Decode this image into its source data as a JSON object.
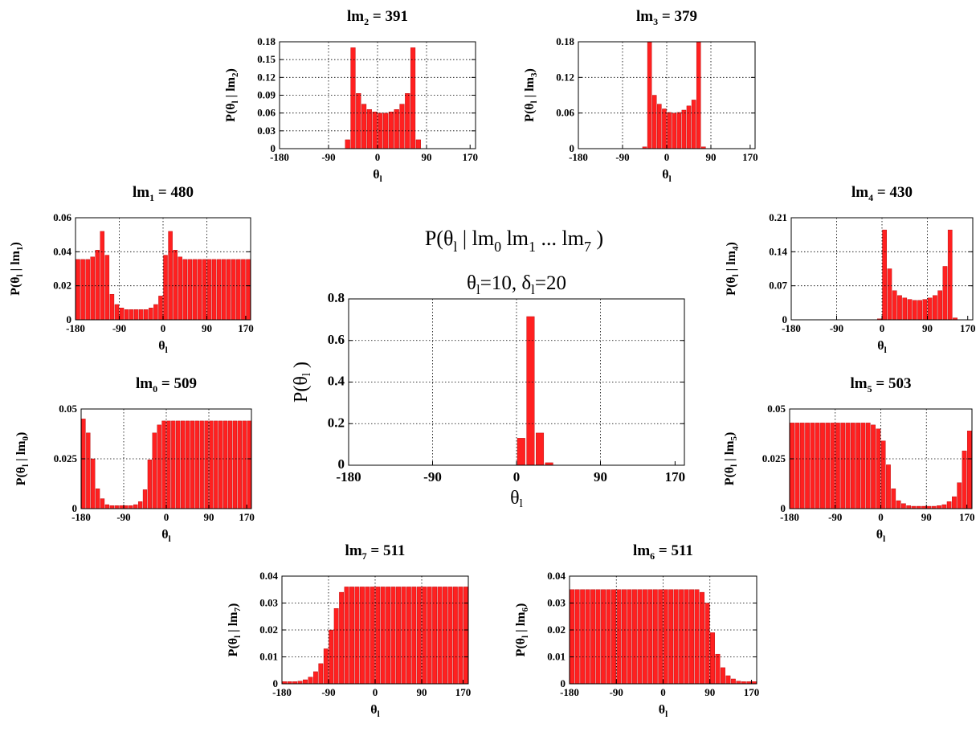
{
  "figure": {
    "main_title": {
      "p": "P(θ",
      "sub_a": "l",
      "mid": " | lm",
      "sub_b": "0",
      "mid2": " lm",
      "sub_c": "1",
      "mid3": " ... lm",
      "sub_d": "7",
      "end": " )"
    },
    "bar_color": "#ff2020",
    "bar_edge": "#b00000",
    "grid_color": "#000000"
  },
  "chart_data": [
    {
      "id": "lm2",
      "type": "bar",
      "title": {
        "base": "lm",
        "sub": "2",
        "suffix": " = 391"
      },
      "ylabel": {
        "a": "P(θ",
        "s1": "l",
        "b": " | lm",
        "s2": "2",
        "c": ")"
      },
      "xlabel": {
        "a": "θ",
        "s": "l"
      },
      "xlim": [
        -180,
        180
      ],
      "ylim": [
        0,
        0.18
      ],
      "xticks": [
        "-180",
        "-90",
        "0",
        "90",
        "170"
      ],
      "xtick_values": [
        -180,
        -90,
        0,
        90,
        170
      ],
      "yticks": [
        "0",
        "0.03",
        "0.06",
        "0.09",
        "0.12",
        "0.15",
        "0.18"
      ],
      "ytick_values": [
        0,
        0.03,
        0.06,
        0.09,
        0.12,
        0.15,
        0.18
      ],
      "bin_start": -180,
      "bin_width": 10,
      "values": [
        0,
        0,
        0,
        0,
        0,
        0,
        0,
        0,
        0,
        0,
        0,
        0,
        0.015,
        0.17,
        0.093,
        0.075,
        0.066,
        0.062,
        0.06,
        0.06,
        0.062,
        0.066,
        0.075,
        0.093,
        0.17,
        0.015,
        0,
        0,
        0,
        0,
        0,
        0,
        0,
        0,
        0,
        0
      ]
    },
    {
      "id": "lm3",
      "type": "bar",
      "title": {
        "base": "lm",
        "sub": "3",
        "suffix": " = 379"
      },
      "ylabel": {
        "a": "P(θ",
        "s1": "l",
        "b": " | lm",
        "s2": "3",
        "c": ")"
      },
      "xlabel": {
        "a": "θ",
        "s": "l"
      },
      "xlim": [
        -180,
        180
      ],
      "ylim": [
        0,
        0.18
      ],
      "xticks": [
        "-180",
        "-90",
        "0",
        "90",
        "170"
      ],
      "xtick_values": [
        -180,
        -90,
        0,
        90,
        170
      ],
      "yticks": [
        "0",
        "0.06",
        "0.12",
        "0.18"
      ],
      "ytick_values": [
        0,
        0.06,
        0.12,
        0.18
      ],
      "bin_start": -180,
      "bin_width": 10,
      "values": [
        0,
        0,
        0,
        0,
        0,
        0,
        0,
        0,
        0,
        0,
        0,
        0,
        0,
        0.003,
        0.18,
        0.09,
        0.075,
        0.067,
        0.061,
        0.06,
        0.061,
        0.065,
        0.072,
        0.082,
        0.18,
        0.003,
        0,
        0,
        0,
        0,
        0,
        0,
        0,
        0,
        0,
        0
      ]
    },
    {
      "id": "lm1",
      "type": "bar",
      "title": {
        "base": "lm",
        "sub": "1",
        "suffix": " = 480"
      },
      "ylabel": {
        "a": "P(θ",
        "s1": "l",
        "b": " | lm",
        "s2": "1",
        "c": ")"
      },
      "xlabel": {
        "a": "θ",
        "s": "l"
      },
      "xlim": [
        -180,
        180
      ],
      "ylim": [
        0,
        0.06
      ],
      "xticks": [
        "-180",
        "-90",
        "0",
        "90",
        "170"
      ],
      "xtick_values": [
        -180,
        -90,
        0,
        90,
        170
      ],
      "yticks": [
        "0",
        "0.02",
        "0.04",
        "0.06"
      ],
      "ytick_values": [
        0,
        0.02,
        0.04,
        0.06
      ],
      "bin_start": -180,
      "bin_width": 10,
      "values": [
        0.0355,
        0.0355,
        0.0355,
        0.037,
        0.041,
        0.052,
        0.038,
        0.015,
        0.009,
        0.007,
        0.006,
        0.006,
        0.006,
        0.006,
        0.006,
        0.007,
        0.009,
        0.014,
        0.038,
        0.052,
        0.041,
        0.037,
        0.0355,
        0.0355,
        0.0355,
        0.0355,
        0.0355,
        0.0355,
        0.0355,
        0.0355,
        0.0355,
        0.0355,
        0.0355,
        0.0355,
        0.0355,
        0.0355
      ]
    },
    {
      "id": "lm4",
      "type": "bar",
      "title": {
        "base": "lm",
        "sub": "4",
        "suffix": " = 430"
      },
      "ylabel": {
        "a": "P(θ",
        "s1": "l",
        "b": " | lm",
        "s2": "4",
        "c": ")"
      },
      "xlabel": {
        "a": "θ",
        "s": "l"
      },
      "xlim": [
        -180,
        180
      ],
      "ylim": [
        0,
        0.21
      ],
      "xticks": [
        "-180",
        "-90",
        "0",
        "90",
        "170"
      ],
      "xtick_values": [
        -180,
        -90,
        0,
        90,
        170
      ],
      "yticks": [
        "0",
        "0.07",
        "0.14",
        "0.21"
      ],
      "ytick_values": [
        0,
        0.07,
        0.14,
        0.21
      ],
      "bin_start": -180,
      "bin_width": 10,
      "values": [
        0,
        0,
        0,
        0,
        0,
        0,
        0,
        0,
        0,
        0,
        0,
        0,
        0,
        0,
        0,
        0,
        0,
        0.002,
        0.185,
        0.105,
        0.06,
        0.05,
        0.045,
        0.042,
        0.04,
        0.04,
        0.042,
        0.045,
        0.05,
        0.06,
        0.11,
        0.185,
        0.004,
        0,
        0,
        0
      ]
    },
    {
      "id": "lm0",
      "type": "bar",
      "title": {
        "base": "lm",
        "sub": "0",
        "suffix": " = 509"
      },
      "ylabel": {
        "a": "P(θ",
        "s1": "l",
        "b": " | lm",
        "s2": "0",
        "c": ")"
      },
      "xlabel": {
        "a": "θ",
        "s": "l"
      },
      "xlim": [
        -180,
        180
      ],
      "ylim": [
        0,
        0.05
      ],
      "xticks": [
        "-180",
        "-90",
        "0",
        "90",
        "170"
      ],
      "xtick_values": [
        -180,
        -90,
        0,
        90,
        170
      ],
      "yticks": [
        "0",
        "0.025",
        "0.05"
      ],
      "ytick_values": [
        0,
        0.025,
        0.05
      ],
      "bin_start": -180,
      "bin_width": 10,
      "values": [
        0.045,
        0.038,
        0.025,
        0.01,
        0.005,
        0.002,
        0.0015,
        0.0015,
        0.0015,
        0.0015,
        0.0015,
        0.002,
        0.0035,
        0.0095,
        0.0245,
        0.038,
        0.042,
        0.044,
        0.044,
        0.044,
        0.044,
        0.044,
        0.044,
        0.044,
        0.044,
        0.044,
        0.044,
        0.044,
        0.044,
        0.044,
        0.044,
        0.044,
        0.044,
        0.044,
        0.044,
        0.044
      ]
    },
    {
      "id": "lm5",
      "type": "bar",
      "title": {
        "base": "lm",
        "sub": "5",
        "suffix": " = 503"
      },
      "ylabel": {
        "a": "P(θ",
        "s1": "l",
        "b": " | lm",
        "s2": "5",
        "c": ")"
      },
      "xlabel": {
        "a": "θ",
        "s": "l"
      },
      "xlim": [
        -180,
        180
      ],
      "ylim": [
        0,
        0.05
      ],
      "xticks": [
        "-180",
        "-90",
        "0",
        "90",
        "170"
      ],
      "xtick_values": [
        -180,
        -90,
        0,
        90,
        170
      ],
      "yticks": [
        "0",
        "0.025",
        "0.05"
      ],
      "ytick_values": [
        0,
        0.025,
        0.05
      ],
      "bin_start": -180,
      "bin_width": 10,
      "values": [
        0.043,
        0.043,
        0.043,
        0.043,
        0.043,
        0.043,
        0.043,
        0.043,
        0.043,
        0.043,
        0.043,
        0.043,
        0.043,
        0.043,
        0.043,
        0.043,
        0.042,
        0.04,
        0.034,
        0.022,
        0.01,
        0.004,
        0.0025,
        0.0015,
        0.0012,
        0.0012,
        0.0012,
        0.0012,
        0.0012,
        0.0015,
        0.002,
        0.0035,
        0.006,
        0.013,
        0.029,
        0.039
      ]
    },
    {
      "id": "lm7",
      "type": "bar",
      "title": {
        "base": "lm",
        "sub": "7",
        "suffix": " = 511"
      },
      "ylabel": {
        "a": "P(θ",
        "s1": "l",
        "b": " | lm",
        "s2": "7",
        "c": ")"
      },
      "xlabel": {
        "a": "θ",
        "s": "l"
      },
      "xlim": [
        -180,
        180
      ],
      "ylim": [
        0,
        0.04
      ],
      "xticks": [
        "-180",
        "-90",
        "0",
        "90",
        "170"
      ],
      "xtick_values": [
        -180,
        -90,
        0,
        90,
        170
      ],
      "yticks": [
        "0",
        "0.01",
        "0.02",
        "0.03",
        "0.04"
      ],
      "ytick_values": [
        0,
        0.01,
        0.02,
        0.03,
        0.04
      ],
      "bin_start": -180,
      "bin_width": 10,
      "values": [
        0.0008,
        0.0008,
        0.0008,
        0.001,
        0.0015,
        0.0025,
        0.0045,
        0.0075,
        0.013,
        0.02,
        0.028,
        0.034,
        0.036,
        0.036,
        0.036,
        0.036,
        0.036,
        0.036,
        0.036,
        0.036,
        0.036,
        0.036,
        0.036,
        0.036,
        0.036,
        0.036,
        0.036,
        0.036,
        0.036,
        0.036,
        0.036,
        0.036,
        0.036,
        0.036,
        0.036,
        0.036
      ]
    },
    {
      "id": "lm6",
      "type": "bar",
      "title": {
        "base": "lm",
        "sub": "6",
        "suffix": " = 511"
      },
      "ylabel": {
        "a": "P(θ",
        "s1": "l",
        "b": " | lm",
        "s2": "6",
        "c": ")"
      },
      "xlabel": {
        "a": "θ",
        "s": "l"
      },
      "xlim": [
        -180,
        180
      ],
      "ylim": [
        0,
        0.04
      ],
      "xticks": [
        "-180",
        "-90",
        "0",
        "90",
        "170"
      ],
      "xtick_values": [
        -180,
        -90,
        0,
        90,
        170
      ],
      "yticks": [
        "0",
        "0.01",
        "0.02",
        "0.03",
        "0.04"
      ],
      "ytick_values": [
        0,
        0.01,
        0.02,
        0.03,
        0.04
      ],
      "bin_start": -180,
      "bin_width": 10,
      "values": [
        0.035,
        0.035,
        0.035,
        0.035,
        0.035,
        0.035,
        0.035,
        0.035,
        0.035,
        0.035,
        0.035,
        0.035,
        0.035,
        0.035,
        0.035,
        0.035,
        0.035,
        0.035,
        0.035,
        0.035,
        0.035,
        0.035,
        0.035,
        0.035,
        0.035,
        0.034,
        0.03,
        0.019,
        0.011,
        0.006,
        0.003,
        0.0018,
        0.001,
        0.0008,
        0.0008,
        0.0008
      ]
    },
    {
      "id": "posterior",
      "type": "bar",
      "title": {
        "a": "θ",
        "s1": "l",
        "b": "=10, δ",
        "s2": "l",
        "c": "=20"
      },
      "ylabel": {
        "a": "P(θ",
        "s1": "l",
        "b": " )"
      },
      "xlabel": {
        "a": "θ",
        "s": "l"
      },
      "xlim": [
        -180,
        180
      ],
      "ylim": [
        0,
        0.8
      ],
      "xticks": [
        "-180",
        "-90",
        "0",
        "90",
        "170"
      ],
      "xtick_values": [
        -180,
        -90,
        0,
        90,
        170
      ],
      "yticks": [
        "0",
        "0.2",
        "0.4",
        "0.6",
        "0.8"
      ],
      "ytick_values": [
        0,
        0.2,
        0.4,
        0.6,
        0.8
      ],
      "bin_start": -180,
      "bin_width": 10,
      "values": [
        0,
        0,
        0,
        0,
        0,
        0,
        0,
        0,
        0,
        0,
        0,
        0,
        0,
        0,
        0,
        0,
        0,
        0,
        0.13,
        0.715,
        0.155,
        0.012,
        0,
        0,
        0,
        0,
        0,
        0,
        0,
        0,
        0,
        0,
        0,
        0,
        0,
        0
      ]
    }
  ]
}
